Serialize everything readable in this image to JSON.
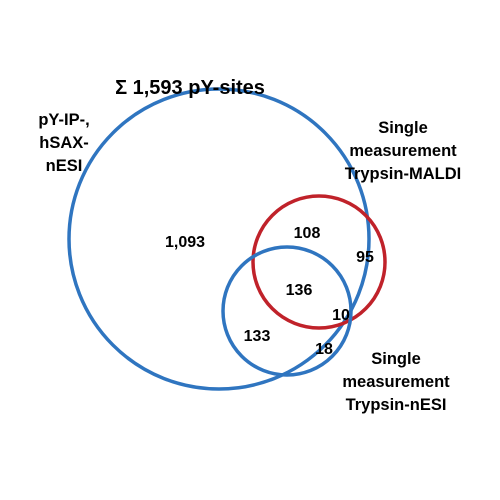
{
  "title": "Σ 1,593 pY-sites",
  "sets": [
    {
      "id": "ip_hsax_nesi",
      "label_lines": [
        "pY-IP-,",
        "hSAX-",
        "nESI"
      ],
      "color": "#2F75C0"
    },
    {
      "id": "trypsin_maldi",
      "label_lines": [
        "Single",
        "measurement",
        "Trypsin-MALDI"
      ],
      "color": "#C0222A"
    },
    {
      "id": "trypsin_nesi",
      "label_lines": [
        "Single",
        "measurement",
        "Trypsin-nESI"
      ],
      "color": "#2F75C0"
    }
  ],
  "regions": {
    "ip_only": "1,093",
    "ip_maldi_only": "108",
    "maldi_only": "95",
    "all_three": "136",
    "maldi_nesi_only": "10",
    "ip_nesi_only": "133",
    "nesi_only": "18"
  }
}
